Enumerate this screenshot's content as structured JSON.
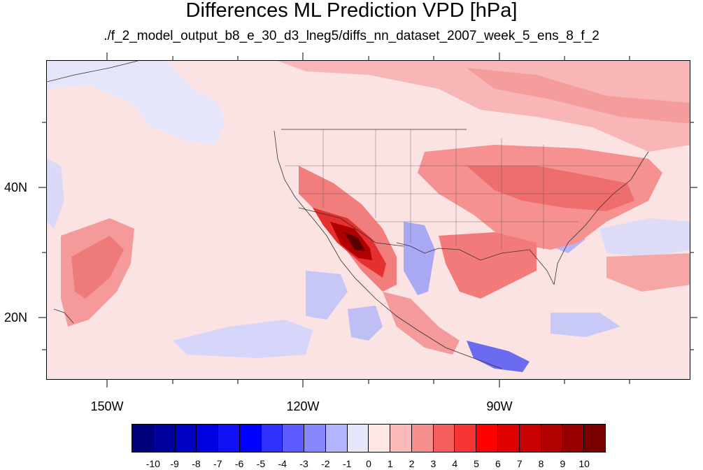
{
  "title": "Differences ML Prediction VPD [hPa]",
  "subtitle": "./f_2_model_output_b8_e_30_d3_lneg5/diffs_nn_dataset_2007_week_5_ens_8_f_2",
  "axes": {
    "lat_labels": [
      "40N",
      "20N"
    ],
    "lon_labels": [
      "150W",
      "120W",
      "90W"
    ]
  },
  "colorbar": {
    "labels": [
      "-10",
      "-9",
      "-8",
      "-7",
      "-6",
      "-5",
      "-4",
      "-3",
      "-2",
      "-1",
      "0",
      "1",
      "2",
      "3",
      "4",
      "5",
      "6",
      "7",
      "8",
      "9",
      "10"
    ],
    "colors": [
      "#00007a",
      "#00009e",
      "#0000c2",
      "#0000e0",
      "#1010f5",
      "#0000ff",
      "#3030ff",
      "#5b5bff",
      "#8787ff",
      "#b5b5ff",
      "#e6e6fb",
      "#fde6e6",
      "#fbbaba",
      "#f88f8f",
      "#f55f5f",
      "#f53535",
      "#ff0000",
      "#e00000",
      "#c80000",
      "#b00000",
      "#960000",
      "#7a0000"
    ]
  },
  "chart_data": {
    "type": "heatmap",
    "title": "Differences ML Prediction VPD [hPa]",
    "subtitle": "./f_2_model_output_b8_e_30_d3_lneg5/diffs_nn_dataset_2007_week_5_ens_8_f_2",
    "xlim": [
      -160,
      -62
    ],
    "ylim": [
      11,
      59
    ],
    "x_ticks": [
      "150W",
      "120W",
      "90W"
    ],
    "y_ticks": [
      "40N",
      "20N"
    ],
    "colorbar_range": [
      -10,
      10
    ],
    "colorbar_step": 1,
    "legend_position": "bottom"
  }
}
